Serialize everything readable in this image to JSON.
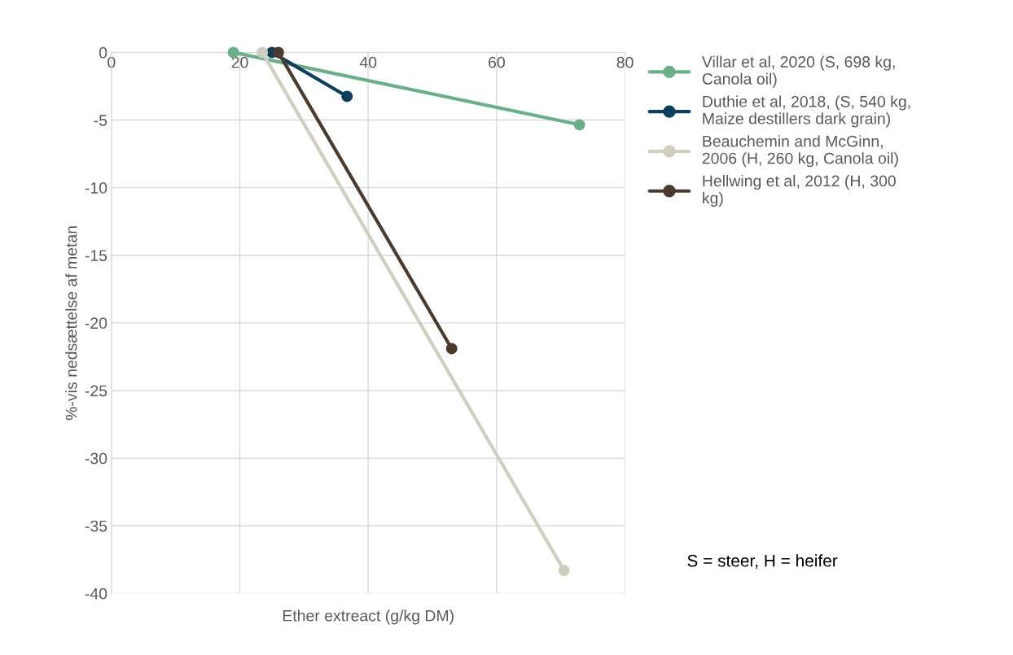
{
  "chart_data": {
    "type": "line",
    "xlabel": "Ether extreact (g/kg DM)",
    "ylabel": "%-vis nedsættelse af metan",
    "xlim": [
      0,
      80
    ],
    "xticks": [
      0,
      20,
      40,
      60,
      80
    ],
    "ylim": [
      -40,
      0
    ],
    "yticks": [
      -40,
      -35,
      -30,
      -25,
      -20,
      -15,
      -10,
      -5,
      0
    ],
    "grid": true,
    "legend": "top right",
    "marker": "circle",
    "line_style": "solid",
    "series": [
      {
        "name": "Villar et al, 2020 (S, 698 kg,\nCanola oil)",
        "color": "#6aaf8a",
        "x": [
          19.0,
          72.9
        ],
        "values": [
          0,
          -5.35
        ]
      },
      {
        "name": "Duthie et al, 2018, (S, 540 kg,\nMaize destillers dark grain)",
        "color": "#0d3f5a",
        "x": [
          25.0,
          36.7
        ],
        "values": [
          0,
          -3.25
        ]
      },
      {
        "name": "Beauchemin and McGinn,\n2006 (H, 260 kg, Canola oil)",
        "color": "#d0cfbf",
        "x": [
          23.5,
          70.5
        ],
        "values": [
          0,
          -38.3
        ]
      },
      {
        "name": "Hellwing et al, 2012 (H, 300\nkg)",
        "color": "#4a3b2e",
        "x": [
          26.0,
          53.0
        ],
        "values": [
          0,
          -21.9
        ]
      }
    ],
    "annotations": [
      "S = steer, H = heifer"
    ]
  }
}
